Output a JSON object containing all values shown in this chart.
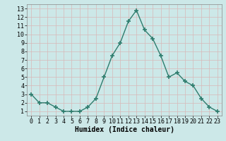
{
  "x": [
    0,
    1,
    2,
    3,
    4,
    5,
    6,
    7,
    8,
    9,
    10,
    11,
    12,
    13,
    14,
    15,
    16,
    17,
    18,
    19,
    20,
    21,
    22,
    23
  ],
  "y": [
    3,
    2,
    2,
    1.5,
    1,
    1,
    1,
    1.5,
    2.5,
    5,
    7.5,
    9,
    11.5,
    12.8,
    10.5,
    9.5,
    7.5,
    5,
    5.5,
    4.5,
    4,
    2.5,
    1.5,
    1
  ],
  "line_color": "#2e7d6e",
  "marker": "+",
  "marker_size": 4,
  "xlabel": "Humidex (Indice chaleur)",
  "xlim": [
    -0.5,
    23.5
  ],
  "ylim": [
    0.5,
    13.5
  ],
  "yticks": [
    1,
    2,
    3,
    4,
    5,
    6,
    7,
    8,
    9,
    10,
    11,
    12,
    13
  ],
  "xticks": [
    0,
    1,
    2,
    3,
    4,
    5,
    6,
    7,
    8,
    9,
    10,
    11,
    12,
    13,
    14,
    15,
    16,
    17,
    18,
    19,
    20,
    21,
    22,
    23
  ],
  "background_color": "#cce8e8",
  "grid_color": "#b0d0d0",
  "xlabel_fontsize": 7,
  "tick_fontsize": 6,
  "linewidth": 1.0
}
